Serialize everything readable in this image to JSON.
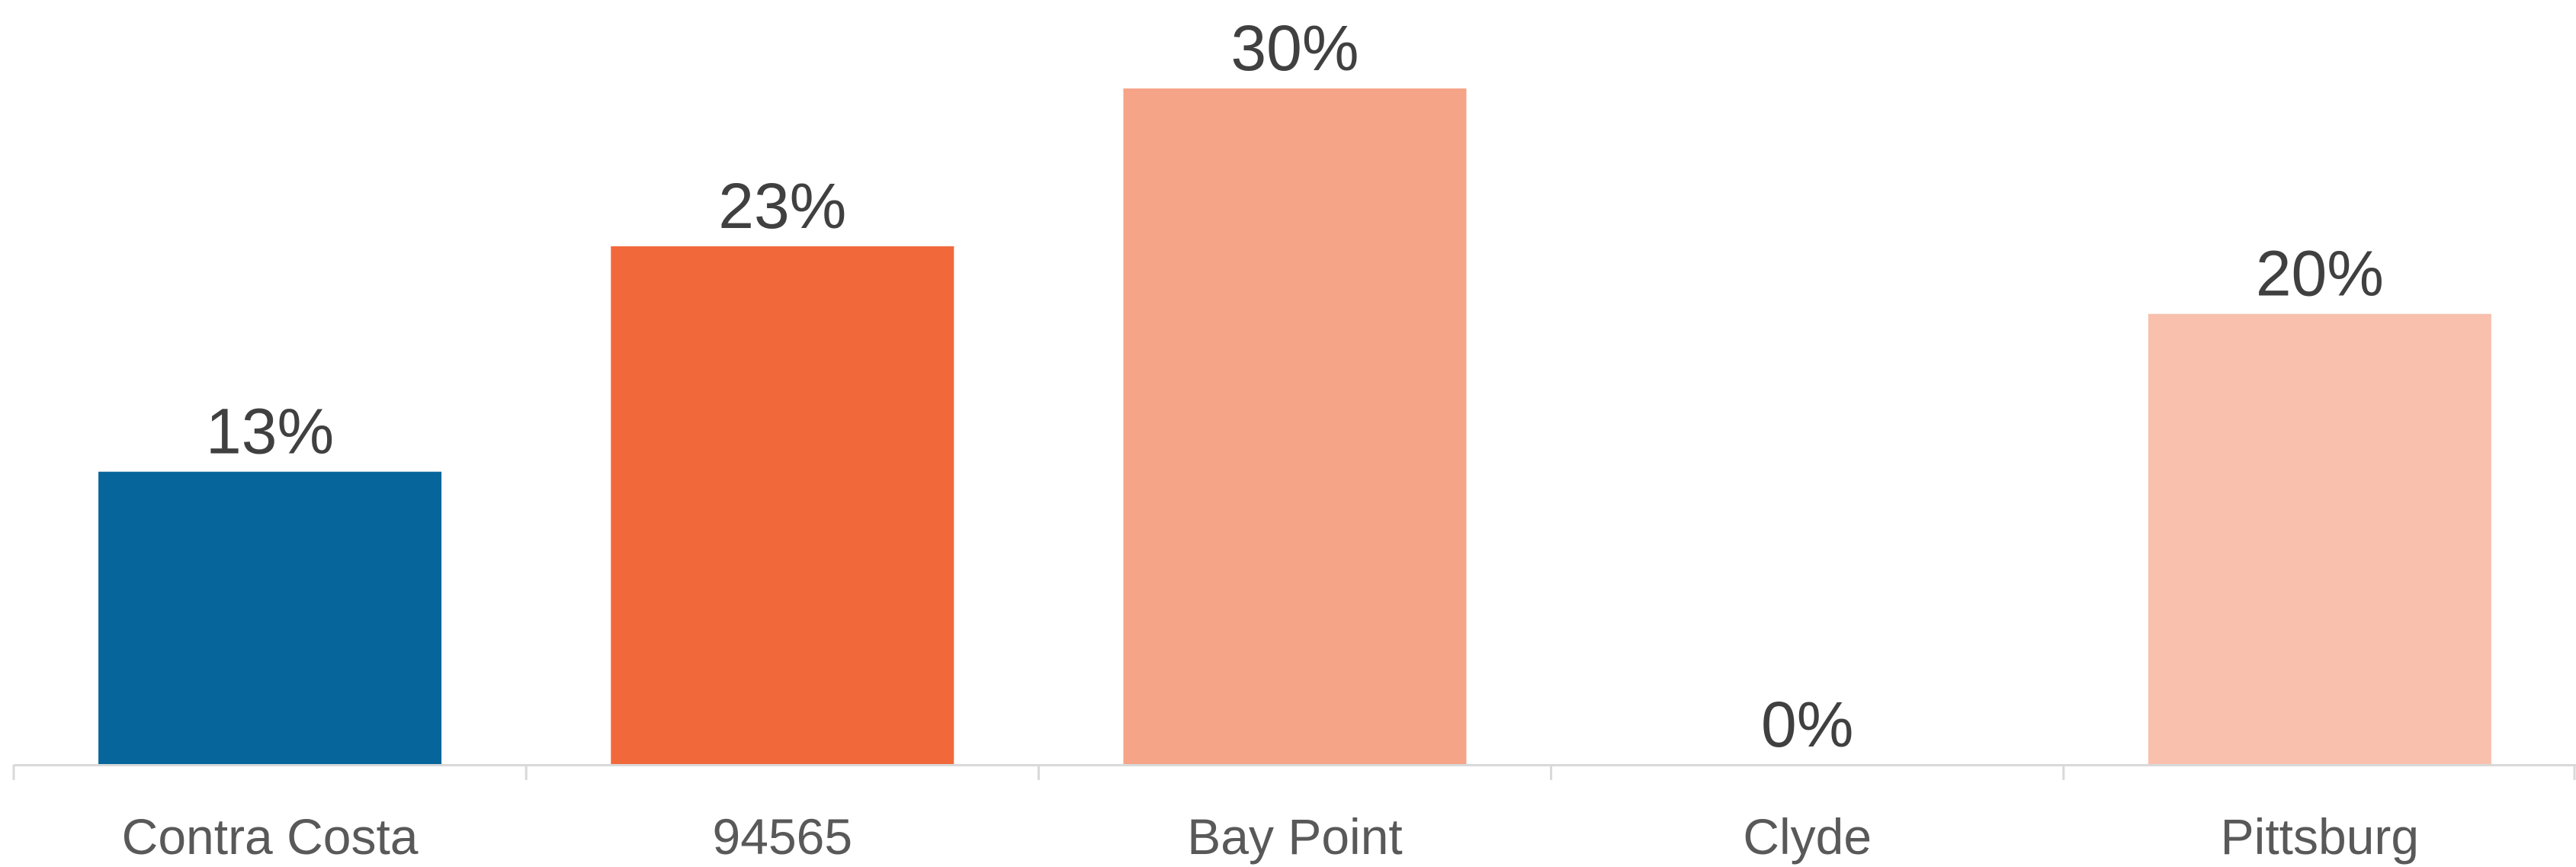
{
  "chart_data": {
    "type": "bar",
    "categories": [
      "Contra Costa",
      "94565",
      "Bay Point",
      "Clyde",
      "Pittsburg"
    ],
    "values": [
      13,
      23,
      30,
      0,
      20
    ],
    "value_labels": [
      "13%",
      "23%",
      "30%",
      "0%",
      "20%"
    ],
    "unit": "%",
    "colors": [
      "#06659b",
      "#f1693b",
      "#f6a488",
      "#f6a488",
      "#f8c0ad"
    ],
    "axis_color": "#d9d9d9",
    "label_color": "#404040",
    "tick_color": "#595959",
    "ylim": [
      0,
      30
    ],
    "grid": false,
    "legend": "none",
    "title": "",
    "xlabel": "",
    "ylabel": ""
  }
}
